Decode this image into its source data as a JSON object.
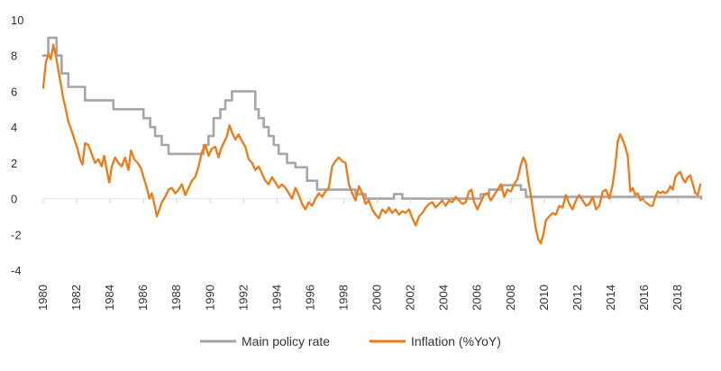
{
  "chart_data": {
    "type": "line",
    "title": "",
    "xlabel": "",
    "ylabel": "",
    "xlim": [
      1980,
      2019.4
    ],
    "ylim": [
      -4,
      10
    ],
    "y_ticks": [
      -4,
      -2,
      0,
      2,
      4,
      6,
      8,
      10
    ],
    "x_ticks": [
      "1980",
      "1982",
      "1984",
      "1986",
      "1988",
      "1990",
      "1992",
      "1994",
      "1996",
      "1998",
      "2000",
      "2002",
      "2004",
      "2006",
      "2008",
      "2010",
      "2012",
      "2014",
      "2016",
      "2018"
    ],
    "grid": false,
    "legend_position": "bottom",
    "series": [
      {
        "name": "Main policy rate",
        "color": "#a6a6a6",
        "step": true,
        "points": [
          [
            1980.0,
            8.0
          ],
          [
            1980.3,
            9.0
          ],
          [
            1980.8,
            8.0
          ],
          [
            1981.1,
            7.0
          ],
          [
            1981.5,
            6.25
          ],
          [
            1982.5,
            5.5
          ],
          [
            1984.2,
            5.0
          ],
          [
            1986.0,
            4.5
          ],
          [
            1986.4,
            4.0
          ],
          [
            1986.7,
            3.5
          ],
          [
            1987.1,
            3.0
          ],
          [
            1987.5,
            2.5
          ],
          [
            1989.6,
            3.0
          ],
          [
            1989.9,
            3.5
          ],
          [
            1990.2,
            4.5
          ],
          [
            1990.6,
            5.0
          ],
          [
            1990.9,
            5.5
          ],
          [
            1991.3,
            6.0
          ],
          [
            1992.7,
            5.0
          ],
          [
            1992.9,
            4.5
          ],
          [
            1993.2,
            4.0
          ],
          [
            1993.5,
            3.5
          ],
          [
            1993.8,
            3.0
          ],
          [
            1994.1,
            2.5
          ],
          [
            1994.6,
            2.0
          ],
          [
            1995.1,
            1.75
          ],
          [
            1995.8,
            1.0
          ],
          [
            1996.4,
            0.5
          ],
          [
            1998.7,
            0.25
          ],
          [
            1999.3,
            0.0
          ],
          [
            2001.0,
            0.25
          ],
          [
            2001.5,
            0.0
          ],
          [
            2006.2,
            0.25
          ],
          [
            2006.7,
            0.5
          ],
          [
            2007.5,
            0.75
          ],
          [
            2008.6,
            0.5
          ],
          [
            2008.9,
            0.1
          ],
          [
            2019.4,
            0.0
          ]
        ]
      },
      {
        "name": "Inflation (%YoY)",
        "color": "#f07a14",
        "step": false,
        "points": [
          [
            1980.0,
            6.2
          ],
          [
            1980.15,
            7.6
          ],
          [
            1980.3,
            8.1
          ],
          [
            1980.45,
            7.8
          ],
          [
            1980.6,
            8.6
          ],
          [
            1980.75,
            8.0
          ],
          [
            1980.9,
            7.2
          ],
          [
            1981.05,
            6.4
          ],
          [
            1981.2,
            5.6
          ],
          [
            1981.35,
            5.0
          ],
          [
            1981.5,
            4.3
          ],
          [
            1981.7,
            3.8
          ],
          [
            1981.9,
            3.2
          ],
          [
            1982.05,
            2.8
          ],
          [
            1982.2,
            2.2
          ],
          [
            1982.35,
            1.9
          ],
          [
            1982.5,
            3.1
          ],
          [
            1982.7,
            3.0
          ],
          [
            1982.9,
            2.5
          ],
          [
            1983.1,
            2.0
          ],
          [
            1983.3,
            2.2
          ],
          [
            1983.5,
            1.8
          ],
          [
            1983.65,
            2.4
          ],
          [
            1983.8,
            1.6
          ],
          [
            1983.95,
            0.9
          ],
          [
            1984.1,
            1.8
          ],
          [
            1984.3,
            2.3
          ],
          [
            1984.5,
            2.0
          ],
          [
            1984.7,
            1.8
          ],
          [
            1984.9,
            2.3
          ],
          [
            1985.1,
            1.6
          ],
          [
            1985.25,
            2.7
          ],
          [
            1985.45,
            2.2
          ],
          [
            1985.65,
            2.0
          ],
          [
            1985.85,
            1.7
          ],
          [
            1986.0,
            1.2
          ],
          [
            1986.2,
            0.6
          ],
          [
            1986.35,
            0.0
          ],
          [
            1986.5,
            0.3
          ],
          [
            1986.65,
            -0.3
          ],
          [
            1986.8,
            -1.0
          ],
          [
            1986.95,
            -0.6
          ],
          [
            1987.1,
            -0.2
          ],
          [
            1987.3,
            0.1
          ],
          [
            1987.5,
            0.5
          ],
          [
            1987.7,
            0.6
          ],
          [
            1987.9,
            0.3
          ],
          [
            1988.1,
            0.5
          ],
          [
            1988.3,
            0.8
          ],
          [
            1988.5,
            0.2
          ],
          [
            1988.7,
            0.6
          ],
          [
            1988.9,
            1.0
          ],
          [
            1989.1,
            1.2
          ],
          [
            1989.3,
            1.8
          ],
          [
            1989.5,
            2.6
          ],
          [
            1989.7,
            3.0
          ],
          [
            1989.9,
            2.4
          ],
          [
            1990.1,
            2.8
          ],
          [
            1990.3,
            2.9
          ],
          [
            1990.5,
            2.3
          ],
          [
            1990.65,
            2.8
          ],
          [
            1990.8,
            3.1
          ],
          [
            1991.0,
            3.5
          ],
          [
            1991.15,
            4.1
          ],
          [
            1991.3,
            3.7
          ],
          [
            1991.5,
            3.3
          ],
          [
            1991.7,
            3.6
          ],
          [
            1991.9,
            3.2
          ],
          [
            1992.1,
            2.9
          ],
          [
            1992.3,
            2.2
          ],
          [
            1992.5,
            2.0
          ],
          [
            1992.7,
            1.6
          ],
          [
            1992.9,
            1.8
          ],
          [
            1993.1,
            1.4
          ],
          [
            1993.3,
            1.0
          ],
          [
            1993.5,
            0.8
          ],
          [
            1993.7,
            1.2
          ],
          [
            1993.9,
            0.9
          ],
          [
            1994.1,
            0.6
          ],
          [
            1994.3,
            0.8
          ],
          [
            1994.5,
            0.6
          ],
          [
            1994.7,
            0.3
          ],
          [
            1994.9,
            0.0
          ],
          [
            1995.1,
            0.6
          ],
          [
            1995.3,
            0.2
          ],
          [
            1995.5,
            -0.3
          ],
          [
            1995.7,
            -0.6
          ],
          [
            1995.9,
            -0.2
          ],
          [
            1996.1,
            -0.4
          ],
          [
            1996.3,
            0.0
          ],
          [
            1996.5,
            0.3
          ],
          [
            1996.7,
            0.1
          ],
          [
            1996.9,
            0.4
          ],
          [
            1997.1,
            0.6
          ],
          [
            1997.3,
            1.8
          ],
          [
            1997.5,
            2.1
          ],
          [
            1997.7,
            2.3
          ],
          [
            1997.9,
            2.1
          ],
          [
            1998.1,
            2.0
          ],
          [
            1998.3,
            0.8
          ],
          [
            1998.5,
            0.3
          ],
          [
            1998.7,
            -0.1
          ],
          [
            1998.9,
            0.7
          ],
          [
            1999.1,
            0.3
          ],
          [
            1999.3,
            -0.3
          ],
          [
            1999.5,
            -0.1
          ],
          [
            1999.7,
            -0.6
          ],
          [
            1999.9,
            -0.9
          ],
          [
            2000.1,
            -1.1
          ],
          [
            2000.3,
            -0.6
          ],
          [
            2000.5,
            -0.8
          ],
          [
            2000.7,
            -0.5
          ],
          [
            2000.9,
            -0.8
          ],
          [
            2001.1,
            -0.6
          ],
          [
            2001.3,
            -0.9
          ],
          [
            2001.5,
            -0.7
          ],
          [
            2001.7,
            -0.8
          ],
          [
            2001.9,
            -0.6
          ],
          [
            2002.1,
            -1.1
          ],
          [
            2002.3,
            -1.5
          ],
          [
            2002.5,
            -1.0
          ],
          [
            2002.7,
            -0.8
          ],
          [
            2002.9,
            -0.5
          ],
          [
            2003.1,
            -0.3
          ],
          [
            2003.3,
            -0.2
          ],
          [
            2003.5,
            -0.5
          ],
          [
            2003.7,
            -0.3
          ],
          [
            2003.9,
            -0.1
          ],
          [
            2004.1,
            -0.4
          ],
          [
            2004.3,
            -0.1
          ],
          [
            2004.5,
            -0.2
          ],
          [
            2004.7,
            0.1
          ],
          [
            2004.9,
            -0.1
          ],
          [
            2005.1,
            -0.3
          ],
          [
            2005.3,
            -0.2
          ],
          [
            2005.5,
            0.4
          ],
          [
            2005.65,
            0.5
          ],
          [
            2005.8,
            -0.2
          ],
          [
            2006.0,
            -0.6
          ],
          [
            2006.2,
            -0.2
          ],
          [
            2006.4,
            0.2
          ],
          [
            2006.6,
            0.3
          ],
          [
            2006.8,
            -0.1
          ],
          [
            2007.0,
            0.2
          ],
          [
            2007.2,
            0.5
          ],
          [
            2007.4,
            0.8
          ],
          [
            2007.6,
            0.1
          ],
          [
            2007.8,
            0.5
          ],
          [
            2008.0,
            0.4
          ],
          [
            2008.2,
            0.8
          ],
          [
            2008.4,
            1.1
          ],
          [
            2008.6,
            1.9
          ],
          [
            2008.75,
            2.3
          ],
          [
            2008.9,
            2.0
          ],
          [
            2009.05,
            1.0
          ],
          [
            2009.2,
            0.2
          ],
          [
            2009.35,
            -0.8
          ],
          [
            2009.5,
            -1.7
          ],
          [
            2009.65,
            -2.3
          ],
          [
            2009.8,
            -2.5
          ],
          [
            2009.95,
            -2.0
          ],
          [
            2010.1,
            -1.2
          ],
          [
            2010.3,
            -1.0
          ],
          [
            2010.5,
            -0.8
          ],
          [
            2010.7,
            -0.9
          ],
          [
            2010.9,
            -0.4
          ],
          [
            2011.1,
            -0.5
          ],
          [
            2011.3,
            0.2
          ],
          [
            2011.5,
            -0.3
          ],
          [
            2011.7,
            -0.6
          ],
          [
            2011.9,
            -0.1
          ],
          [
            2012.1,
            0.2
          ],
          [
            2012.3,
            -0.1
          ],
          [
            2012.5,
            -0.4
          ],
          [
            2012.7,
            -0.3
          ],
          [
            2012.9,
            0.1
          ],
          [
            2013.1,
            -0.6
          ],
          [
            2013.3,
            -0.4
          ],
          [
            2013.5,
            0.4
          ],
          [
            2013.7,
            0.5
          ],
          [
            2013.9,
            0.0
          ],
          [
            2014.1,
            0.8
          ],
          [
            2014.25,
            1.8
          ],
          [
            2014.4,
            3.2
          ],
          [
            2014.55,
            3.6
          ],
          [
            2014.7,
            3.3
          ],
          [
            2014.85,
            2.9
          ],
          [
            2015.0,
            2.4
          ],
          [
            2015.15,
            0.4
          ],
          [
            2015.3,
            0.6
          ],
          [
            2015.45,
            0.2
          ],
          [
            2015.6,
            0.3
          ],
          [
            2015.75,
            -0.1
          ],
          [
            2015.9,
            0.0
          ],
          [
            2016.05,
            -0.2
          ],
          [
            2016.2,
            -0.3
          ],
          [
            2016.35,
            -0.4
          ],
          [
            2016.5,
            -0.4
          ],
          [
            2016.65,
            0.1
          ],
          [
            2016.8,
            0.4
          ],
          [
            2016.95,
            0.3
          ],
          [
            2017.1,
            0.4
          ],
          [
            2017.25,
            0.3
          ],
          [
            2017.4,
            0.4
          ],
          [
            2017.55,
            0.7
          ],
          [
            2017.7,
            0.5
          ],
          [
            2017.85,
            1.2
          ],
          [
            2018.0,
            1.4
          ],
          [
            2018.15,
            1.5
          ],
          [
            2018.3,
            1.1
          ],
          [
            2018.45,
            0.9
          ],
          [
            2018.6,
            1.2
          ],
          [
            2018.75,
            1.3
          ],
          [
            2018.9,
            0.8
          ],
          [
            2019.05,
            0.3
          ],
          [
            2019.2,
            0.2
          ],
          [
            2019.35,
            0.8
          ]
        ]
      }
    ]
  }
}
